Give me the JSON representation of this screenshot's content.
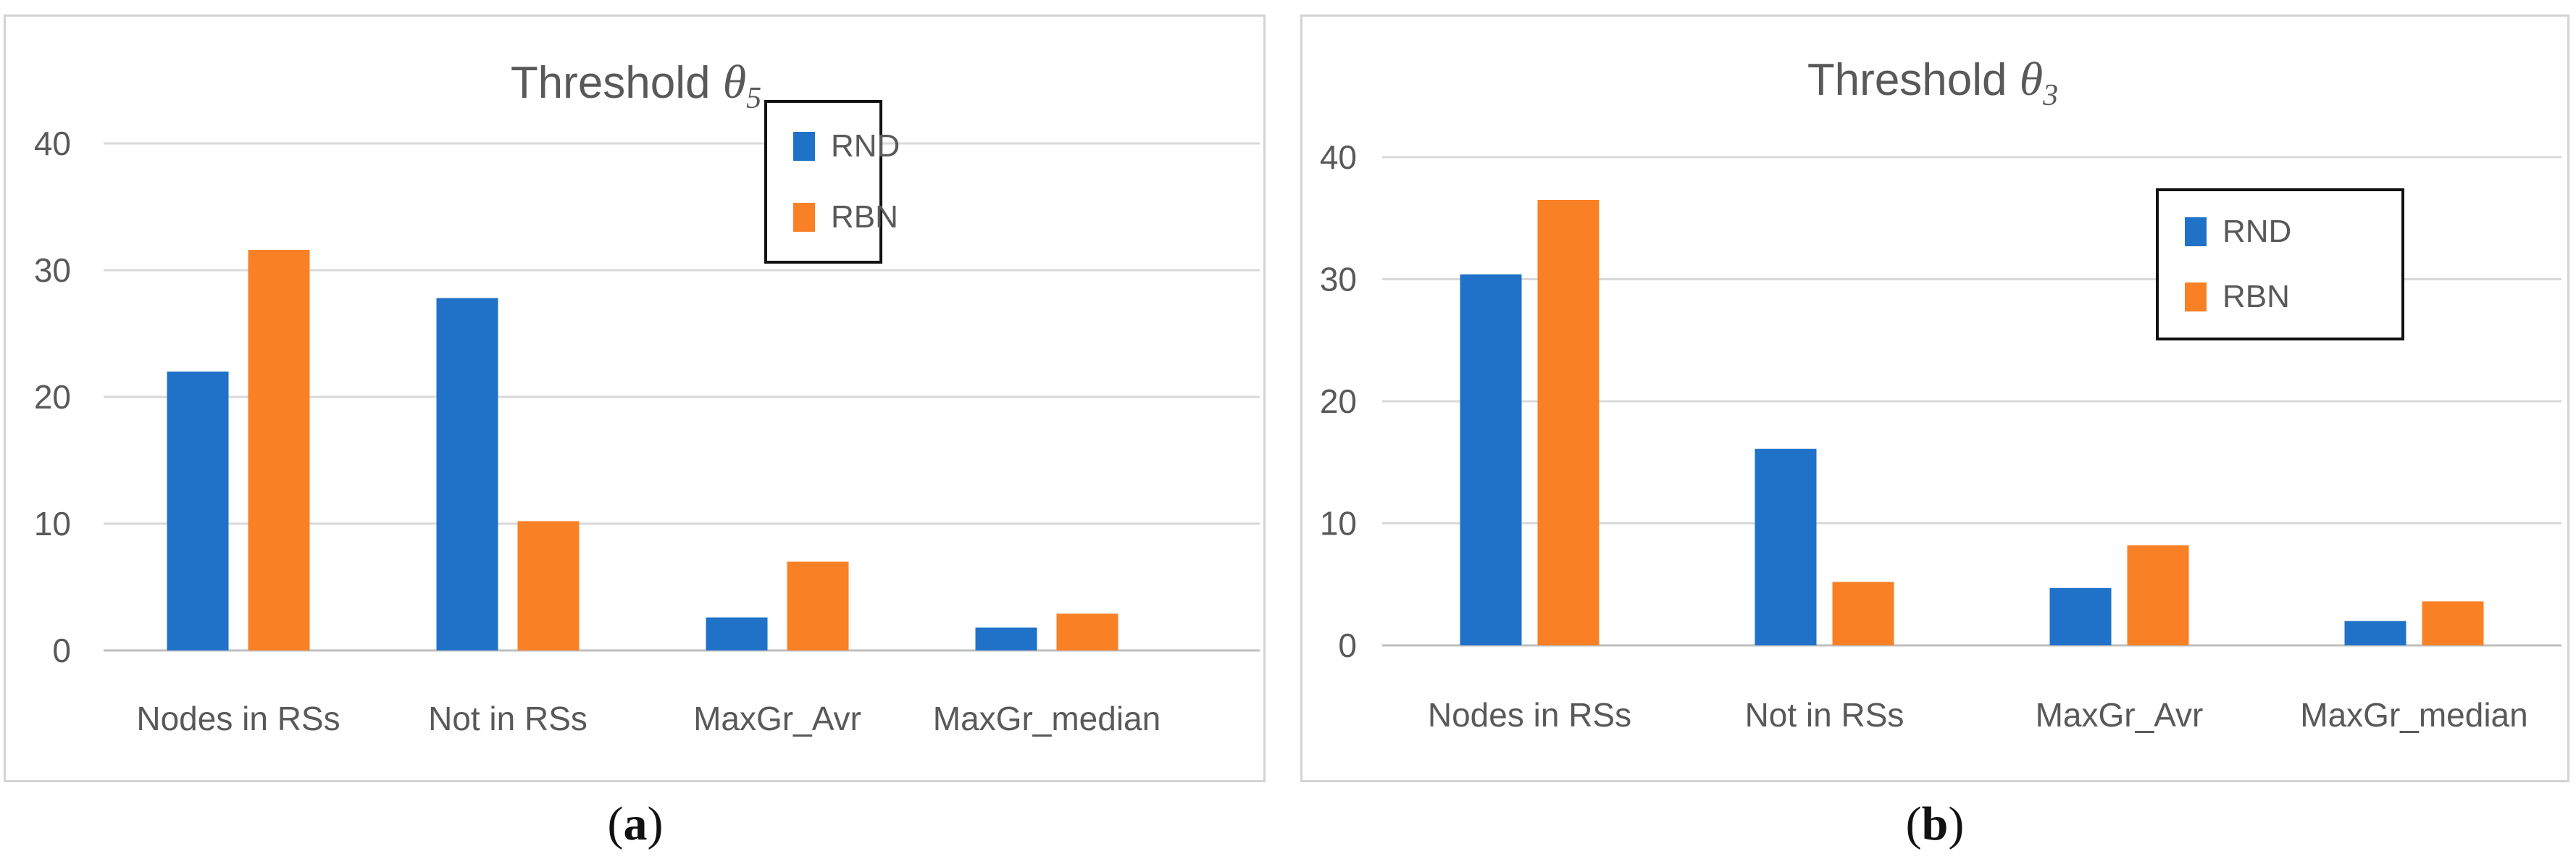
{
  "colors": {
    "RND": "#1f72c8",
    "RBN": "#f98025",
    "grid": "#d9d9d9",
    "text": "#595959"
  },
  "legend": {
    "rnd_label": "RND",
    "rbn_label": "RBN"
  },
  "captions": {
    "a_pre": "(",
    "a_letter": "a",
    "a_post": ")",
    "b_pre": "(",
    "b_letter": "b",
    "b_post": ")"
  },
  "chart_data": [
    {
      "type": "bar",
      "title": "Threshold ",
      "title_symbol": "θ",
      "title_subscript": "5",
      "categories": [
        "Nodes in RSs",
        "Not in RSs",
        "MaxGr_Avr",
        "MaxGr_median"
      ],
      "series": [
        {
          "name": "RND",
          "values": [
            22,
            27.8,
            2.6,
            1.8
          ]
        },
        {
          "name": "RBN",
          "values": [
            31.6,
            10.2,
            7,
            2.9
          ]
        }
      ],
      "ylim": [
        0,
        40
      ],
      "yticks": [
        0,
        10,
        20,
        30,
        40
      ],
      "grid": true,
      "legend_position": "right"
    },
    {
      "type": "bar",
      "title": "Threshold ",
      "title_symbol": "θ",
      "title_subscript": "3",
      "categories": [
        "Nodes in RSs",
        "Not in RSs",
        "MaxGr_Avr",
        "MaxGr_median"
      ],
      "series": [
        {
          "name": "RND",
          "values": [
            30.4,
            16.1,
            4.7,
            2
          ]
        },
        {
          "name": "RBN",
          "values": [
            36.5,
            5.2,
            8.2,
            3.6
          ]
        }
      ],
      "ylim": [
        0,
        40
      ],
      "yticks": [
        0,
        10,
        20,
        30,
        40
      ],
      "grid": true,
      "legend_position": "top-right"
    }
  ]
}
